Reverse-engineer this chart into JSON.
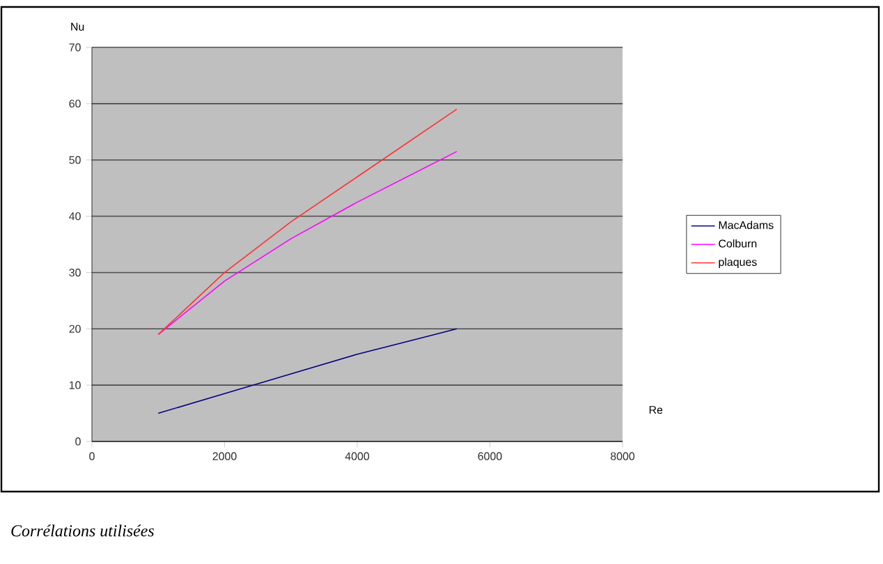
{
  "chart_data": {
    "type": "line",
    "xlabel": "Re",
    "ylabel": "Nu",
    "x": [
      1000,
      2000,
      3000,
      4000,
      5000,
      5500
    ],
    "series": [
      {
        "name": "MacAdams",
        "color": "#000080",
        "values": [
          5,
          8.5,
          12,
          15.5,
          18.5,
          20
        ]
      },
      {
        "name": "Colburn",
        "color": "#ff00ff",
        "values": [
          19,
          28.5,
          36,
          42.5,
          48.5,
          51.5
        ]
      },
      {
        "name": "plaques",
        "color": "#ff3030",
        "values": [
          19,
          30,
          39,
          47,
          55,
          59
        ]
      }
    ],
    "xlim": [
      0,
      8000
    ],
    "ylim": [
      0,
      70
    ],
    "xticks": [
      0,
      2000,
      4000,
      6000,
      8000
    ],
    "yticks": [
      0,
      10,
      20,
      30,
      40,
      50,
      60,
      70
    ],
    "grid": "y",
    "legend": "right",
    "marker": "none",
    "annotations": [
      "*Corrélations utilisées*"
    ]
  }
}
